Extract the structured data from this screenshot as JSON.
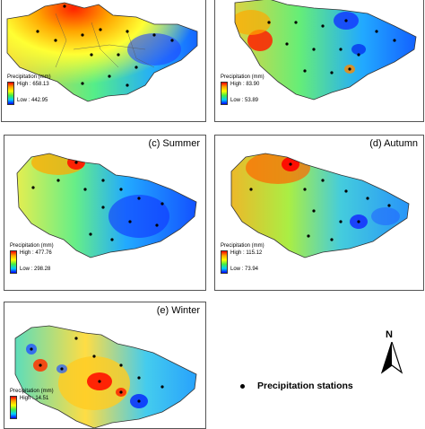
{
  "panels": [
    {
      "id": "a",
      "title": "",
      "legend_title": "Precipitation (mm)",
      "high": "High : 658.13",
      "low": "Low : 442.95"
    },
    {
      "id": "b",
      "title": "",
      "legend_title": "Precipitation (mm)",
      "high": "High : 83.90",
      "low": "Low : 53.89"
    },
    {
      "id": "c",
      "title": "(c) Summer",
      "legend_title": "Precipitation (mm)",
      "high": "High : 477.76",
      "low": "Low : 298.28"
    },
    {
      "id": "d",
      "title": "(d) Autumn",
      "legend_title": "Precipitation (mm)",
      "high": "High : 115.12",
      "low": "Low : 73.94"
    },
    {
      "id": "e",
      "title": "(e) Winter",
      "legend_title": "Precipitation (mm)",
      "high": "High : 14.51",
      "low": ""
    }
  ],
  "north_label": "N",
  "stations_label": "Precipitation stations",
  "colors": {
    "high": "#ff0000",
    "mid": "#ffff00",
    "low": "#0000ff"
  },
  "icons": [
    "north-arrow-icon",
    "station-dot-icon"
  ]
}
